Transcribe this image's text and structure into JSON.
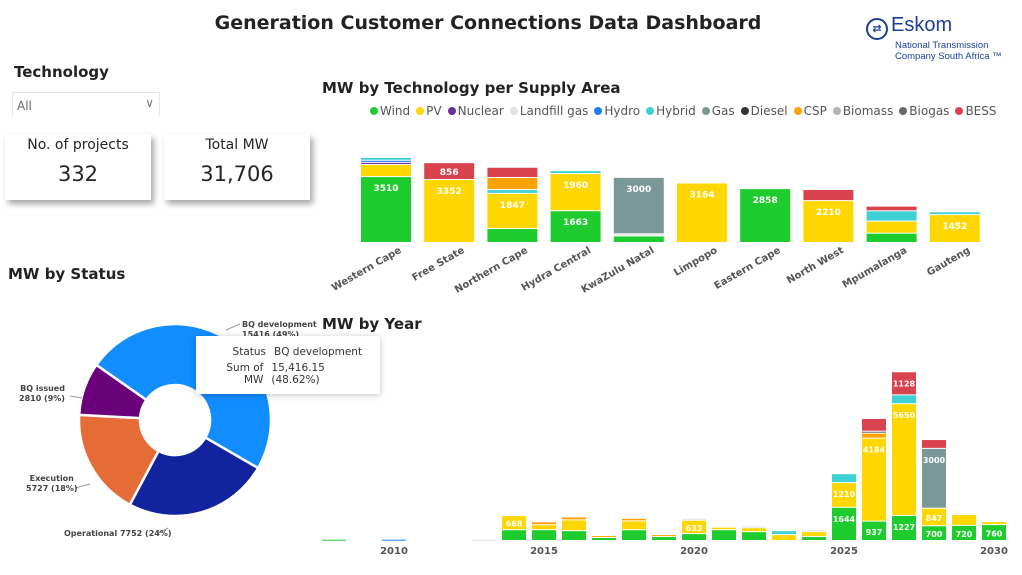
{
  "title": "Generation Customer Connections Data Dashboard",
  "logo": {
    "name": "Eskom",
    "line1": "National Transmission",
    "line2": "Company South Africa ™"
  },
  "slicer": {
    "label": "Technology",
    "value": "All",
    "icon": "chevron-down-icon"
  },
  "cards": [
    {
      "label": "No. of projects",
      "value": "332"
    },
    {
      "label": "Total MW",
      "value": "31,706"
    }
  ],
  "colors": {
    "Wind": "#1fcc2e",
    "PV": "#ffd700",
    "Nuclear": "#6b2fa0",
    "Landfill gas": "#e2e2e2",
    "Hydro": "#1a80f0",
    "Hybrid": "#3dd0d4",
    "Gas": "#7a9898",
    "Diesel": "#333333",
    "CSP": "#ffa200",
    "Biomass": "#b4b4b4",
    "Biogas": "#666666",
    "BESS": "#d9434e"
  },
  "chart_data": [
    {
      "type": "bar",
      "stacked": true,
      "title": "MW by Technology per Supply Area",
      "legend_position": "top",
      "legend": [
        "Wind",
        "PV",
        "Nuclear",
        "Landfill gas",
        "Hydro",
        "Hybrid",
        "Gas",
        "Diesel",
        "CSP",
        "Biomass",
        "Biogas",
        "BESS"
      ],
      "categories": [
        {
          "name": "Western Cape",
          "segs": {
            "Wind": 3510,
            "PV": 600,
            "Nuclear": 60,
            "Hydro": 60,
            "Hybrid": 100
          },
          "labeled": [
            "Wind"
          ]
        },
        {
          "name": "Free State",
          "segs": {
            "PV": 3352,
            "BESS": 856
          },
          "labeled": [
            "PV",
            "BESS"
          ]
        },
        {
          "name": "Northern Cape",
          "segs": {
            "Wind": 700,
            "PV": 1847,
            "Hybrid": 150,
            "CSP": 600,
            "BESS": 500
          },
          "labeled": [
            "PV"
          ]
        },
        {
          "name": "Hydra Central",
          "segs": {
            "Wind": 1663,
            "PV": 1960,
            "Hybrid": 100
          },
          "labeled": [
            "Wind",
            "PV"
          ]
        },
        {
          "name": "KwaZulu Natal",
          "segs": {
            "Wind": 300,
            "Landfill gas": 60,
            "Gas": 3000
          },
          "labeled": [
            "Gas"
          ]
        },
        {
          "name": "Limpopo",
          "segs": {
            "PV": 3164
          },
          "labeled": [
            "PV"
          ]
        },
        {
          "name": "Eastern Cape",
          "segs": {
            "Wind": 2858
          },
          "labeled": [
            "Wind"
          ]
        },
        {
          "name": "North West",
          "segs": {
            "PV": 2210,
            "BESS": 550
          },
          "labeled": [
            "PV"
          ]
        },
        {
          "name": "Mpumalanga",
          "segs": {
            "Wind": 450,
            "PV": 600,
            "Hybrid": 500,
            "BESS": 200
          },
          "labeled": []
        },
        {
          "name": "Gauteng",
          "segs": {
            "PV": 1452,
            "Hybrid": 100
          },
          "labeled": [
            "PV"
          ]
        }
      ]
    },
    {
      "type": "pie",
      "donut": true,
      "title": "MW by Status",
      "slices": [
        {
          "name": "BQ development",
          "value": 15416,
          "pct": "49%",
          "color": "#118dff"
        },
        {
          "name": "Operational",
          "value": 7752,
          "pct": "24%",
          "color": "#12239e"
        },
        {
          "name": "Execution",
          "value": 5727,
          "pct": "18%",
          "color": "#e66c37"
        },
        {
          "name": "BQ issued",
          "value": 2810,
          "pct": "9%",
          "color": "#6b007b"
        }
      ],
      "labels": {
        "bqdev": "BQ development",
        "bqdev_val": "15416 (49%)",
        "bqissued": "BQ issued",
        "bqissued_val": "2810 (9%)",
        "execution": "Execution",
        "execution_val": "5727 (18%)",
        "operational": "Operational 7752 (24%)"
      },
      "tooltip": {
        "k1": "Status",
        "v1": "BQ development",
        "k2": "Sum of MW",
        "v2": "15,416.15 (48.62%)"
      }
    },
    {
      "type": "bar",
      "stacked": true,
      "title": "MW by Year",
      "x_ticks": [
        "2010",
        "2015",
        "2020",
        "2025",
        "2030"
      ],
      "years": [
        {
          "year": 2008,
          "segs": {
            "Wind": 15
          }
        },
        {
          "year": 2010,
          "segs": {
            "Hydro": 15
          }
        },
        {
          "year": 2013,
          "segs": {
            "Landfill gas": 15
          }
        },
        {
          "year": 2014,
          "segs": {
            "Wind": 500,
            "PV": 668
          },
          "labeled": [
            "PV"
          ]
        },
        {
          "year": 2015,
          "segs": {
            "Wind": 500,
            "PV": 200,
            "CSP": 100
          }
        },
        {
          "year": 2016,
          "segs": {
            "Wind": 450,
            "PV": 500,
            "CSP": 100
          }
        },
        {
          "year": 2017,
          "segs": {
            "Wind": 100,
            "CSP": 50
          }
        },
        {
          "year": 2018,
          "segs": {
            "Wind": 500,
            "PV": 400,
            "CSP": 80
          }
        },
        {
          "year": 2019,
          "segs": {
            "Wind": 150,
            "CSP": 50
          }
        },
        {
          "year": 2020,
          "segs": {
            "Wind": 300,
            "PV": 633,
            "Landfill gas": 50
          },
          "labeled": [
            "PV"
          ]
        },
        {
          "year": 2021,
          "segs": {
            "Wind": 500,
            "PV": 80
          }
        },
        {
          "year": 2022,
          "segs": {
            "Wind": 400,
            "PV": 150,
            "Landfill gas": 40
          }
        },
        {
          "year": 2023,
          "segs": {
            "PV": 250,
            "Hybrid": 150
          }
        },
        {
          "year": 2024,
          "segs": {
            "Wind": 150,
            "PV": 200,
            "Landfill gas": 40
          }
        },
        {
          "year": 2025,
          "segs": {
            "Wind": 1644,
            "PV": 1210,
            "Hybrid": 400
          },
          "labeled": [
            "Wind",
            "PV"
          ]
        },
        {
          "year": 2026,
          "segs": {
            "Wind": 937,
            "PV": 4184,
            "Biogas": 50,
            "CSP": 200,
            "BESS": 600
          },
          "labeled": [
            "Wind",
            "PV"
          ]
        },
        {
          "year": 2027,
          "segs": {
            "Wind": 1227,
            "PV": 5650,
            "Hybrid": 400,
            "BESS": 1128
          },
          "labeled": [
            "Wind",
            "PV",
            "BESS"
          ]
        },
        {
          "year": 2028,
          "segs": {
            "Wind": 700,
            "PV": 847,
            "Gas": 3000,
            "BESS": 400
          },
          "labeled": [
            "Wind",
            "PV",
            "Gas"
          ]
        },
        {
          "year": 2029,
          "segs": {
            "Wind": 720,
            "PV": 500
          },
          "labeled": [
            "Wind"
          ]
        },
        {
          "year": 2030,
          "segs": {
            "Wind": 760,
            "PV": 100
          },
          "labeled": [
            "Wind"
          ]
        }
      ]
    }
  ]
}
